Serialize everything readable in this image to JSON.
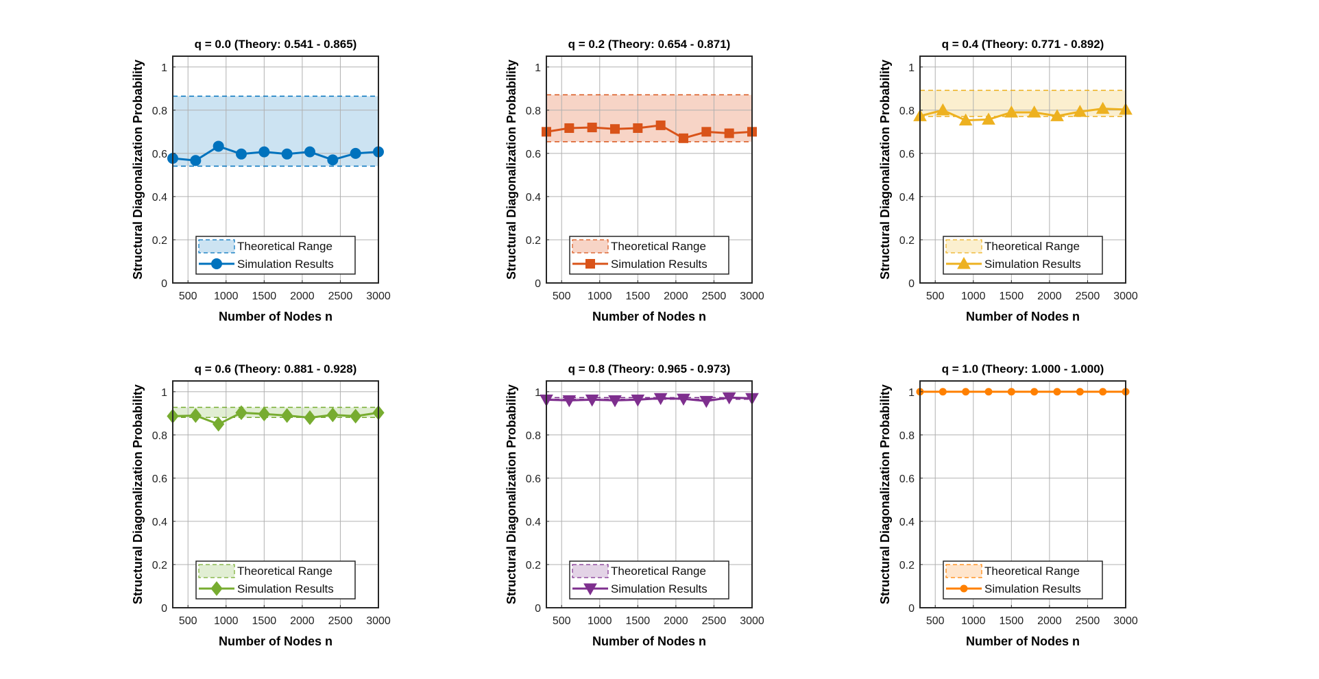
{
  "chart_data": [
    {
      "type": "line",
      "title": "q = 0.0 (Theory: 0.541 - 0.865)",
      "xlabel": "Number of Nodes n",
      "ylabel": "Structural Diagonalization Probability",
      "xlim": [
        300,
        3000
      ],
      "ylim": [
        0,
        1.05
      ],
      "xticks": [
        500,
        1000,
        1500,
        2000,
        2500,
        3000
      ],
      "yticks": [
        0,
        0.2,
        0.4,
        0.6,
        0.8,
        1
      ],
      "grid": true,
      "legend_position": "bottom-center",
      "band": {
        "name": "Theoretical Range",
        "low": 0.541,
        "high": 0.865
      },
      "series": [
        {
          "name": "Simulation Results",
          "marker": "circle",
          "x": [
            300,
            600,
            900,
            1200,
            1500,
            1800,
            2100,
            2400,
            2700,
            3000
          ],
          "values": [
            0.577,
            0.567,
            0.633,
            0.597,
            0.607,
            0.597,
            0.607,
            0.57,
            0.6,
            0.607
          ]
        }
      ],
      "colors": {
        "line": "#0072BD",
        "fill": "#cce3f2"
      }
    },
    {
      "type": "line",
      "title": "q = 0.2 (Theory: 0.654 - 0.871)",
      "xlabel": "Number of Nodes n",
      "ylabel": "Structural Diagonalization Probability",
      "xlim": [
        300,
        3000
      ],
      "ylim": [
        0,
        1.05
      ],
      "xticks": [
        500,
        1000,
        1500,
        2000,
        2500,
        3000
      ],
      "yticks": [
        0,
        0.2,
        0.4,
        0.6,
        0.8,
        1
      ],
      "grid": true,
      "legend_position": "bottom-center",
      "band": {
        "name": "Theoretical Range",
        "low": 0.654,
        "high": 0.871
      },
      "series": [
        {
          "name": "Simulation Results",
          "marker": "square",
          "x": [
            300,
            600,
            900,
            1200,
            1500,
            1800,
            2100,
            2400,
            2700,
            3000
          ],
          "values": [
            0.7,
            0.717,
            0.72,
            0.713,
            0.717,
            0.73,
            0.67,
            0.7,
            0.693,
            0.7
          ]
        }
      ],
      "colors": {
        "line": "#D95319",
        "fill": "#f7d4c6"
      }
    },
    {
      "type": "line",
      "title": "q = 0.4 (Theory: 0.771 - 0.892)",
      "xlabel": "Number of Nodes n",
      "ylabel": "Structural Diagonalization Probability",
      "xlim": [
        300,
        3000
      ],
      "ylim": [
        0,
        1.05
      ],
      "xticks": [
        500,
        1000,
        1500,
        2000,
        2500,
        3000
      ],
      "yticks": [
        0,
        0.2,
        0.4,
        0.6,
        0.8,
        1
      ],
      "grid": true,
      "legend_position": "bottom-center",
      "band": {
        "name": "Theoretical Range",
        "low": 0.771,
        "high": 0.892
      },
      "series": [
        {
          "name": "Simulation Results",
          "marker": "triangle-up",
          "x": [
            300,
            600,
            900,
            1200,
            1500,
            1800,
            2100,
            2400,
            2700,
            3000
          ],
          "values": [
            0.773,
            0.8,
            0.753,
            0.757,
            0.79,
            0.79,
            0.773,
            0.793,
            0.807,
            0.803
          ]
        }
      ],
      "colors": {
        "line": "#EDB120",
        "fill": "#fbefcf"
      }
    },
    {
      "type": "line",
      "title": "q = 0.6 (Theory: 0.881 - 0.928)",
      "xlabel": "Number of Nodes n",
      "ylabel": "Structural Diagonalization Probability",
      "xlim": [
        300,
        3000
      ],
      "ylim": [
        0,
        1.05
      ],
      "xticks": [
        500,
        1000,
        1500,
        2000,
        2500,
        3000
      ],
      "yticks": [
        0,
        0.2,
        0.4,
        0.6,
        0.8,
        1
      ],
      "grid": true,
      "legend_position": "bottom-center",
      "band": {
        "name": "Theoretical Range",
        "low": 0.881,
        "high": 0.928
      },
      "series": [
        {
          "name": "Simulation Results",
          "marker": "diamond",
          "x": [
            300,
            600,
            900,
            1200,
            1500,
            1800,
            2100,
            2400,
            2700,
            3000
          ],
          "values": [
            0.887,
            0.89,
            0.85,
            0.903,
            0.897,
            0.89,
            0.88,
            0.893,
            0.887,
            0.903
          ]
        }
      ],
      "colors": {
        "line": "#77AC30",
        "fill": "#e1eed3"
      }
    },
    {
      "type": "line",
      "title": "q = 0.8 (Theory: 0.965 - 0.973)",
      "xlabel": "Number of Nodes n",
      "ylabel": "Structural Diagonalization Probability",
      "xlim": [
        300,
        3000
      ],
      "ylim": [
        0,
        1.05
      ],
      "xticks": [
        500,
        1000,
        1500,
        2000,
        2500,
        3000
      ],
      "yticks": [
        0,
        0.2,
        0.4,
        0.6,
        0.8,
        1
      ],
      "grid": true,
      "legend_position": "bottom-center",
      "band": {
        "name": "Theoretical Range",
        "low": 0.965,
        "high": 0.973
      },
      "series": [
        {
          "name": "Simulation Results",
          "marker": "triangle-down",
          "x": [
            300,
            600,
            900,
            1200,
            1500,
            1800,
            2100,
            2400,
            2700,
            3000
          ],
          "values": [
            0.963,
            0.96,
            0.963,
            0.96,
            0.963,
            0.97,
            0.967,
            0.957,
            0.973,
            0.97
          ]
        }
      ],
      "colors": {
        "line": "#7E2F8E",
        "fill": "#e3d3e6"
      }
    },
    {
      "type": "line",
      "title": "q = 1.0 (Theory: 1.000 - 1.000)",
      "xlabel": "Number of Nodes n",
      "ylabel": "Structural Diagonalization Probability",
      "xlim": [
        300,
        3000
      ],
      "ylim": [
        0,
        1.05
      ],
      "xticks": [
        500,
        1000,
        1500,
        2000,
        2500,
        3000
      ],
      "yticks": [
        0,
        0.2,
        0.4,
        0.6,
        0.8,
        1
      ],
      "grid": true,
      "legend_position": "bottom-center",
      "band": {
        "name": "Theoretical Range",
        "low": 1.0,
        "high": 1.0
      },
      "series": [
        {
          "name": "Simulation Results",
          "marker": "small-circle",
          "x": [
            300,
            600,
            900,
            1200,
            1500,
            1800,
            2100,
            2400,
            2700,
            3000
          ],
          "values": [
            1.0,
            1.0,
            1.0,
            1.0,
            1.0,
            1.0,
            1.0,
            1.0,
            1.0,
            1.0
          ]
        }
      ],
      "colors": {
        "line": "#FF8000",
        "fill": "#ffe5cc"
      }
    }
  ]
}
